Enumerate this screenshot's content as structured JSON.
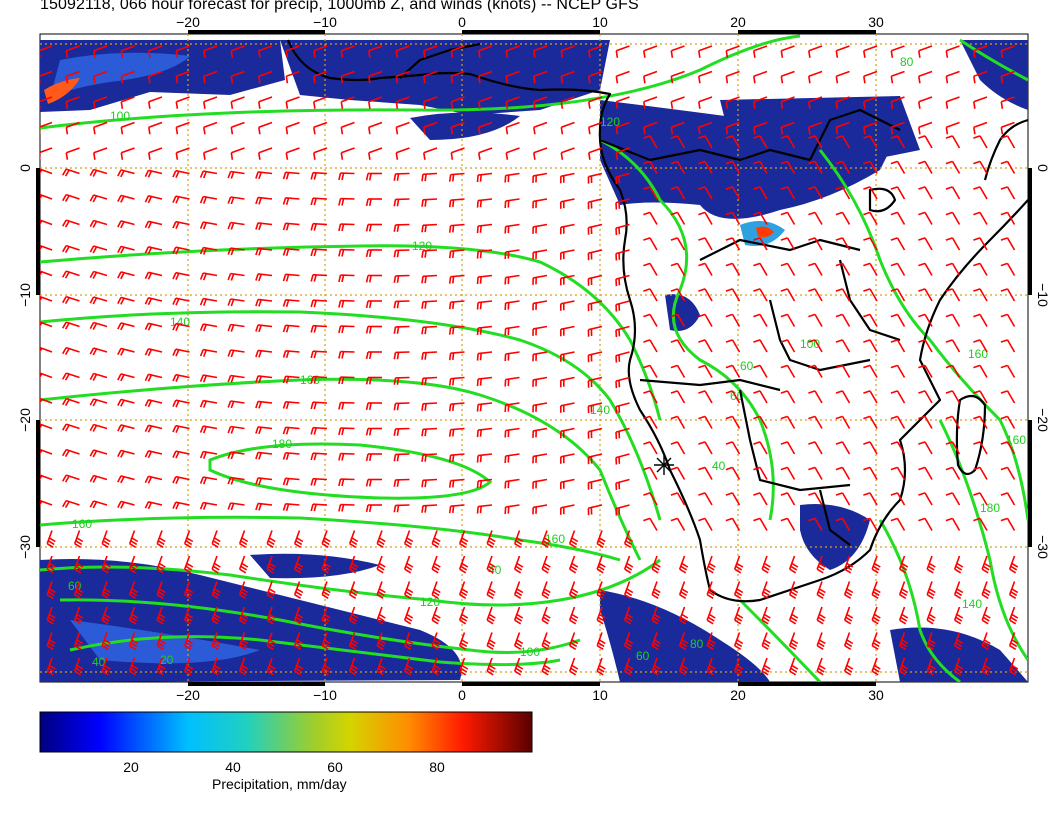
{
  "header": {
    "title": "15092118, 066 hour forecast for precip, 1000mb Z, and winds (knots) -- NCEP GFS"
  },
  "map": {
    "lon_range": [
      -30,
      40
    ],
    "lat_range": [
      -40,
      10
    ],
    "lon_ticks_bottom": [
      "−20",
      "−10",
      "0",
      "10",
      "20",
      "30"
    ],
    "lon_ticks_top": [
      "−20",
      "−10",
      "0",
      "10",
      "20",
      "30"
    ],
    "lat_ticks_left": [
      "0",
      "−10",
      "−20",
      "−30"
    ],
    "lat_ticks_right": [
      "0",
      "−10",
      "−20",
      "−30"
    ],
    "contour_labels": [
      "100",
      "120",
      "140",
      "160",
      "180",
      "160",
      "140",
      "160",
      "120",
      "100",
      "60",
      "40",
      "20",
      "40",
      "60",
      "80",
      "100",
      "60",
      "40",
      "60",
      "80",
      "120",
      "160",
      "180",
      "160",
      "140"
    ],
    "colors": {
      "wind_barbs": "#ff0000",
      "contours": "#00dd00",
      "grid": "#d4a017",
      "coast": "#000000",
      "ocean_precip": "#1a2a9a"
    }
  },
  "colorbar": {
    "ticks": [
      "20",
      "40",
      "60",
      "80"
    ],
    "label": "Precipitation, mm/day",
    "range": [
      0,
      100
    ]
  }
}
